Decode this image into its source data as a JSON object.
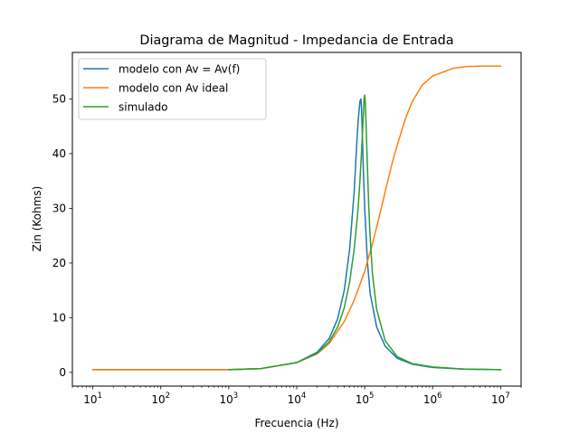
{
  "chart_data": {
    "type": "line",
    "title": "Diagrama de Magnitud - Impedancia de Entrada",
    "xlabel": "Frecuencia (Hz)",
    "ylabel": "Zin (Kohms)",
    "xscale": "log",
    "xlim": [
      5,
      20000000
    ],
    "ylim": [
      -2.5,
      58.5
    ],
    "x_ticks": [
      {
        "base": "10",
        "exp": "1",
        "value": 10
      },
      {
        "base": "10",
        "exp": "2",
        "value": 100
      },
      {
        "base": "10",
        "exp": "3",
        "value": 1000
      },
      {
        "base": "10",
        "exp": "4",
        "value": 10000
      },
      {
        "base": "10",
        "exp": "5",
        "value": 100000
      },
      {
        "base": "10",
        "exp": "6",
        "value": 1000000
      },
      {
        "base": "10",
        "exp": "7",
        "value": 10000000
      }
    ],
    "y_ticks": [
      {
        "label": "0",
        "value": 0
      },
      {
        "label": "10",
        "value": 10
      },
      {
        "label": "20",
        "value": 20
      },
      {
        "label": "30",
        "value": 30
      },
      {
        "label": "40",
        "value": 40
      },
      {
        "label": "50",
        "value": 50
      }
    ],
    "grid": false,
    "legend_position": "top-left",
    "series": [
      {
        "name": "modelo con Av = Av(f)",
        "color": "#1f77b4",
        "x": [
          10,
          100,
          1000,
          3000,
          10000,
          20000,
          30000,
          40000,
          50000,
          60000,
          70000,
          75000,
          80000,
          85000,
          88000,
          90000,
          92000,
          95000,
          100000,
          110000,
          120000,
          150000,
          200000,
          300000,
          500000,
          1000000,
          3000000,
          10000000
        ],
        "values": [
          0.5,
          0.5,
          0.5,
          0.7,
          1.8,
          3.7,
          6.2,
          9.8,
          15.0,
          22.5,
          33.0,
          40.0,
          46.0,
          49.5,
          50.0,
          48.0,
          44.0,
          38.0,
          30.0,
          20.0,
          14.5,
          8.3,
          4.8,
          2.6,
          1.5,
          0.9,
          0.6,
          0.5
        ]
      },
      {
        "name": "modelo con Av ideal",
        "color": "#ff7f0e",
        "x": [
          10,
          100,
          1000,
          3000,
          10000,
          20000,
          30000,
          50000,
          70000,
          100000,
          130000,
          160000,
          200000,
          250000,
          300000,
          400000,
          500000,
          700000,
          1000000,
          2000000,
          3000000,
          5000000,
          10000000
        ],
        "values": [
          0.5,
          0.5,
          0.5,
          0.7,
          1.8,
          3.4,
          5.3,
          9.3,
          13.2,
          18.5,
          23.5,
          28.0,
          33.0,
          38.0,
          41.5,
          46.5,
          49.5,
          52.5,
          54.2,
          55.6,
          55.9,
          56.0,
          56.0
        ]
      },
      {
        "name": "simulado",
        "color": "#2ca02c",
        "x": [
          1000,
          3000,
          10000,
          20000,
          30000,
          40000,
          50000,
          60000,
          70000,
          80000,
          85000,
          90000,
          95000,
          98000,
          100000,
          102000,
          105000,
          110000,
          115000,
          120000,
          130000,
          150000,
          200000,
          300000,
          500000,
          1000000,
          3000000,
          10000000
        ],
        "values": [
          0.5,
          0.7,
          1.8,
          3.5,
          5.6,
          8.3,
          11.8,
          16.5,
          22.5,
          30.0,
          35.0,
          40.5,
          46.5,
          50.0,
          50.7,
          49.5,
          45.0,
          37.0,
          30.0,
          25.0,
          18.0,
          11.5,
          5.8,
          2.9,
          1.6,
          1.0,
          0.6,
          0.5
        ]
      }
    ]
  }
}
